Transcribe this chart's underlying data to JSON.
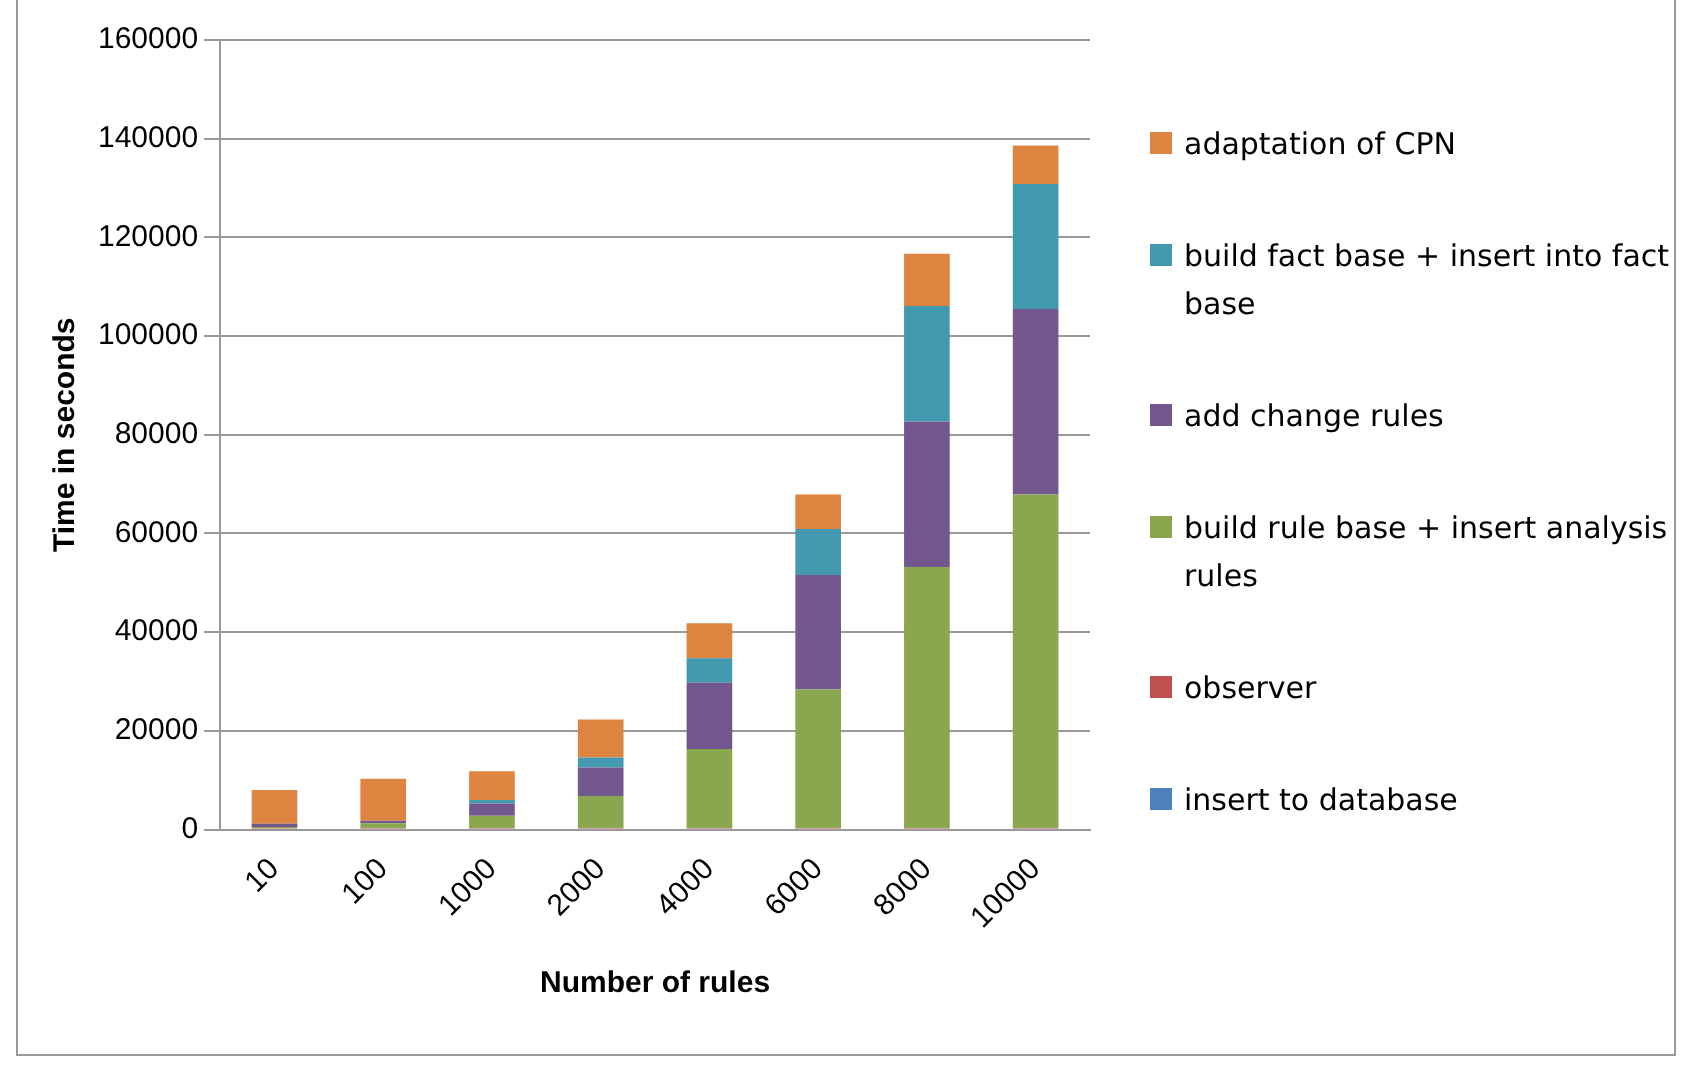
{
  "chart_data": {
    "type": "bar",
    "stacked": true,
    "xlabel": "Number of rules",
    "ylabel": "Time in seconds",
    "categories": [
      "10",
      "100",
      "1000",
      "2000",
      "4000",
      "6000",
      "8000",
      "10000"
    ],
    "ylim": [
      0,
      160000
    ],
    "yticks": [
      0,
      20000,
      40000,
      60000,
      80000,
      100000,
      120000,
      140000,
      160000
    ],
    "grid": "y",
    "legend": "right",
    "series": [
      {
        "name": "insert to database",
        "color": "#4f81bd",
        "values": [
          200,
          200,
          200,
          200,
          200,
          200,
          200,
          200
        ]
      },
      {
        "name": "observer",
        "color": "#c0504d",
        "values": [
          100,
          100,
          100,
          100,
          100,
          100,
          100,
          100
        ]
      },
      {
        "name": "build rule base + insert analysis rules",
        "color": "#8aa64e",
        "values": [
          200,
          1000,
          2500,
          6500,
          16000,
          28100,
          52900,
          67600
        ]
      },
      {
        "name": "add change rules",
        "color": "#72588f",
        "values": [
          700,
          500,
          2500,
          5800,
          13500,
          23200,
          29500,
          37600
        ]
      },
      {
        "name": "build fact base + insert into fact base",
        "color": "#4399b0",
        "values": [
          0,
          0,
          700,
          2000,
          4900,
          9300,
          23400,
          25300
        ]
      },
      {
        "name": "adaptation of CPN",
        "color": "#dd8540",
        "values": [
          6800,
          8500,
          5800,
          7700,
          7100,
          7000,
          10600,
          7800
        ]
      }
    ]
  }
}
